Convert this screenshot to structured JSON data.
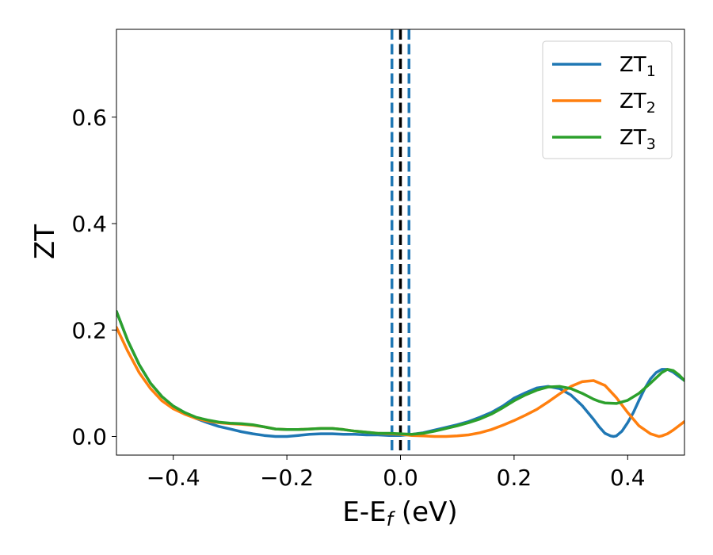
{
  "chart_data": {
    "type": "line",
    "title": "",
    "xlabel": "E-E",
    "xlabel_sub": "f",
    "xlabel_unit": " (eV)",
    "ylabel": "ZT",
    "xlim": [
      -0.5,
      0.5
    ],
    "ylim": [
      -0.035,
      0.765
    ],
    "xticks": [
      -0.4,
      -0.2,
      0.0,
      0.2,
      0.4
    ],
    "xtick_labels": [
      "−0.4",
      "−0.2",
      "0.0",
      "0.2",
      "0.4"
    ],
    "yticks": [
      0.0,
      0.2,
      0.4,
      0.6
    ],
    "ytick_labels": [
      "0.0",
      "0.2",
      "0.4",
      "0.6"
    ],
    "grid": false,
    "legend_position": "top-right",
    "vlines": [
      {
        "x": -0.015,
        "style": "dashed",
        "color": "#1f77b4"
      },
      {
        "x": 0.0,
        "style": "dashed",
        "color": "#000000"
      },
      {
        "x": 0.015,
        "style": "dashed",
        "color": "#1f77b4"
      }
    ],
    "series": [
      {
        "name": "ZT",
        "sub": "1",
        "color": "#1f77b4",
        "x": [
          -0.5,
          -0.48,
          -0.46,
          -0.44,
          -0.42,
          -0.4,
          -0.38,
          -0.36,
          -0.34,
          -0.32,
          -0.3,
          -0.28,
          -0.26,
          -0.24,
          -0.22,
          -0.2,
          -0.18,
          -0.16,
          -0.14,
          -0.12,
          -0.1,
          -0.08,
          -0.06,
          -0.04,
          -0.02,
          0.0,
          0.02,
          0.04,
          0.06,
          0.08,
          0.1,
          0.12,
          0.14,
          0.16,
          0.18,
          0.2,
          0.22,
          0.24,
          0.26,
          0.28,
          0.3,
          0.32,
          0.34,
          0.35,
          0.36,
          0.37,
          0.375,
          0.38,
          0.39,
          0.4,
          0.41,
          0.42,
          0.43,
          0.44,
          0.45,
          0.46,
          0.47,
          0.48,
          0.49,
          0.5
        ],
        "y": [
          0.235,
          0.18,
          0.135,
          0.1,
          0.075,
          0.057,
          0.045,
          0.034,
          0.026,
          0.019,
          0.014,
          0.009,
          0.005,
          0.002,
          0.0,
          0.0,
          0.002,
          0.004,
          0.005,
          0.005,
          0.004,
          0.004,
          0.003,
          0.003,
          0.002,
          0.002,
          0.004,
          0.007,
          0.012,
          0.017,
          0.022,
          0.028,
          0.036,
          0.045,
          0.057,
          0.072,
          0.082,
          0.091,
          0.094,
          0.09,
          0.078,
          0.058,
          0.032,
          0.018,
          0.006,
          0.001,
          0.0,
          0.001,
          0.01,
          0.026,
          0.045,
          0.068,
          0.09,
          0.108,
          0.12,
          0.126,
          0.126,
          0.121,
          0.113,
          0.105
        ]
      },
      {
        "name": "ZT",
        "sub": "2",
        "color": "#ff7f0e",
        "x": [
          -0.5,
          -0.48,
          -0.46,
          -0.44,
          -0.42,
          -0.4,
          -0.38,
          -0.36,
          -0.34,
          -0.32,
          -0.3,
          -0.28,
          -0.26,
          -0.24,
          -0.22,
          -0.2,
          -0.18,
          -0.16,
          -0.14,
          -0.12,
          -0.1,
          -0.08,
          -0.06,
          -0.04,
          -0.02,
          0.0,
          0.02,
          0.04,
          0.06,
          0.08,
          0.1,
          0.12,
          0.14,
          0.16,
          0.18,
          0.2,
          0.22,
          0.24,
          0.26,
          0.28,
          0.3,
          0.32,
          0.34,
          0.36,
          0.38,
          0.4,
          0.42,
          0.44,
          0.455,
          0.46,
          0.47,
          0.48,
          0.49,
          0.5
        ],
        "y": [
          0.205,
          0.16,
          0.12,
          0.09,
          0.067,
          0.052,
          0.042,
          0.034,
          0.029,
          0.026,
          0.024,
          0.023,
          0.021,
          0.018,
          0.014,
          0.013,
          0.013,
          0.014,
          0.015,
          0.015,
          0.013,
          0.01,
          0.008,
          0.006,
          0.005,
          0.004,
          0.002,
          0.001,
          0.0,
          0.0,
          0.001,
          0.003,
          0.007,
          0.013,
          0.021,
          0.03,
          0.04,
          0.051,
          0.065,
          0.08,
          0.094,
          0.103,
          0.105,
          0.096,
          0.073,
          0.045,
          0.02,
          0.005,
          0.0,
          0.001,
          0.005,
          0.012,
          0.02,
          0.028
        ]
      },
      {
        "name": "ZT",
        "sub": "3",
        "color": "#2ca02c",
        "x": [
          -0.5,
          -0.48,
          -0.46,
          -0.44,
          -0.42,
          -0.4,
          -0.38,
          -0.36,
          -0.34,
          -0.32,
          -0.3,
          -0.28,
          -0.26,
          -0.24,
          -0.22,
          -0.2,
          -0.18,
          -0.16,
          -0.14,
          -0.12,
          -0.1,
          -0.08,
          -0.06,
          -0.04,
          -0.02,
          0.0,
          0.02,
          0.04,
          0.06,
          0.08,
          0.1,
          0.12,
          0.14,
          0.16,
          0.18,
          0.2,
          0.22,
          0.24,
          0.26,
          0.28,
          0.3,
          0.32,
          0.34,
          0.35,
          0.36,
          0.38,
          0.4,
          0.42,
          0.44,
          0.46,
          0.47,
          0.48,
          0.49,
          0.5
        ],
        "y": [
          0.235,
          0.18,
          0.135,
          0.1,
          0.075,
          0.057,
          0.045,
          0.036,
          0.031,
          0.027,
          0.025,
          0.024,
          0.022,
          0.018,
          0.014,
          0.013,
          0.013,
          0.014,
          0.015,
          0.015,
          0.013,
          0.01,
          0.008,
          0.006,
          0.006,
          0.005,
          0.004,
          0.006,
          0.01,
          0.015,
          0.02,
          0.026,
          0.033,
          0.042,
          0.054,
          0.067,
          0.078,
          0.087,
          0.093,
          0.094,
          0.09,
          0.081,
          0.07,
          0.066,
          0.063,
          0.062,
          0.068,
          0.081,
          0.1,
          0.12,
          0.126,
          0.124,
          0.116,
          0.105
        ]
      }
    ]
  }
}
